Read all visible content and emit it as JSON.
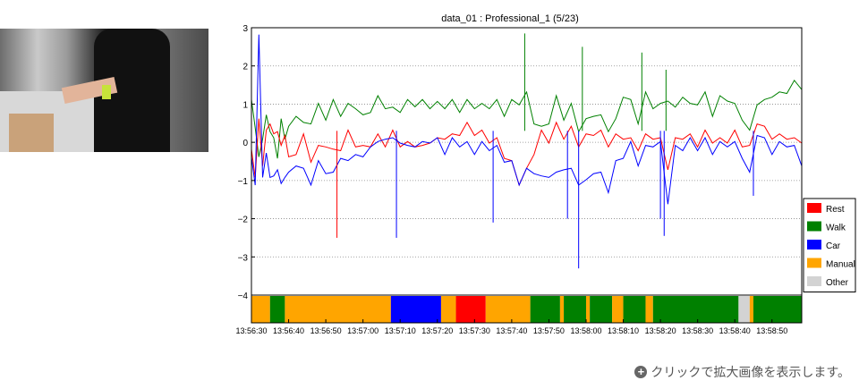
{
  "footer": {
    "text": "クリックで拡大画像を表示します。",
    "icon": "plus-circle-icon"
  },
  "photo": {
    "alt_icon": "video-frame-icon"
  },
  "chart_data": {
    "type": "line",
    "title": "data_01 : Professional_1 (5/23)",
    "ylim": [
      -4,
      3
    ],
    "yticks": [
      "3",
      "2",
      "1",
      "0",
      "−1",
      "−2",
      "−3",
      "−4"
    ],
    "yticks_values": [
      3,
      2,
      1,
      0,
      -1,
      -2,
      -3,
      -4
    ],
    "xlim": [
      "13:56:30",
      "13:58:58"
    ],
    "xticks": [
      "13:56:30",
      "13:56:40",
      "13:56:50",
      "13:57:00",
      "13:57:10",
      "13:57:20",
      "13:57:30",
      "13:57:40",
      "13:57:50",
      "13:58:00",
      "13:58:10",
      "13:58:20",
      "13:58:30",
      "13:58:40",
      "13:58:50"
    ],
    "grid": true,
    "legend_position": "right",
    "legend": [
      {
        "name": "Rest",
        "color": "#ff0000"
      },
      {
        "name": "Walk",
        "color": "#008000"
      },
      {
        "name": "Car",
        "color": "#0000ff"
      },
      {
        "name": "Manual",
        "color": "#ffa500"
      },
      {
        "name": "Other",
        "color": "#d3d3d3"
      }
    ],
    "activity_segments": [
      {
        "start": 0,
        "end": 5,
        "label": "Manual"
      },
      {
        "start": 5,
        "end": 9,
        "label": "Walk"
      },
      {
        "start": 9,
        "end": 37.5,
        "label": "Manual"
      },
      {
        "start": 37.5,
        "end": 51,
        "label": "Car"
      },
      {
        "start": 51,
        "end": 55,
        "label": "Manual"
      },
      {
        "start": 55,
        "end": 63,
        "label": "Rest"
      },
      {
        "start": 63,
        "end": 75,
        "label": "Manual"
      },
      {
        "start": 75,
        "end": 83,
        "label": "Walk"
      },
      {
        "start": 83,
        "end": 84,
        "label": "Manual"
      },
      {
        "start": 84,
        "end": 90,
        "label": "Walk"
      },
      {
        "start": 90,
        "end": 91,
        "label": "Manual"
      },
      {
        "start": 91,
        "end": 97,
        "label": "Walk"
      },
      {
        "start": 97,
        "end": 100,
        "label": "Manual"
      },
      {
        "start": 100,
        "end": 106,
        "label": "Walk"
      },
      {
        "start": 106,
        "end": 108,
        "label": "Manual"
      },
      {
        "start": 108,
        "end": 131,
        "label": "Walk"
      },
      {
        "start": 131,
        "end": 134,
        "label": "Other"
      },
      {
        "start": 134,
        "end": 135,
        "label": "Manual"
      },
      {
        "start": 135,
        "end": 148,
        "label": "Walk"
      }
    ],
    "series": [
      {
        "color": "#008000",
        "x": [
          0,
          1,
          2,
          3,
          4,
          5,
          6,
          7,
          8,
          9,
          10,
          12,
          14,
          16,
          18,
          20,
          22,
          24,
          26,
          28,
          30,
          32,
          34,
          36,
          38,
          40,
          42,
          44,
          46,
          48,
          50,
          52,
          54,
          56,
          58,
          60,
          62,
          64,
          66,
          68,
          70,
          72,
          74,
          76,
          78,
          80,
          82,
          84,
          86,
          88,
          90,
          92,
          94,
          96,
          98,
          100,
          102,
          104,
          106,
          108,
          110,
          112,
          114,
          116,
          118,
          120,
          122,
          124,
          126,
          128,
          130,
          132,
          134,
          136,
          138,
          140,
          142,
          144,
          146,
          148
        ],
        "y": [
          1.0,
          0.5,
          -0.5,
          0.2,
          0.6,
          0.4,
          0.0,
          -0.3,
          0.5,
          0.2,
          0.3,
          0.8,
          0.4,
          0.6,
          0.9,
          0.7,
          1.0,
          0.8,
          0.9,
          1.0,
          0.6,
          0.9,
          1.1,
          1.0,
          0.8,
          0.9,
          1.0,
          1.05,
          1.0,
          1.0,
          0.95,
          1.0,
          1.0,
          0.9,
          1.0,
          1.0,
          0.9,
          1.0,
          1.0,
          0.8,
          1.0,
          1.1,
          1.2,
          0.6,
          0.3,
          0.6,
          1.1,
          0.7,
          0.9,
          0.4,
          0.5,
          0.8,
          0.6,
          0.4,
          0.5,
          1.3,
          1.0,
          0.6,
          1.2,
          1.0,
          0.9,
          1.2,
          0.8,
          1.3,
          0.9,
          1.1,
          1.2,
          0.8,
          1.1,
          1.2,
          0.9,
          0.7,
          0.2,
          1.1,
          1.0,
          1.3,
          1.2,
          1.4,
          1.5,
          1.5
        ]
      },
      {
        "color": "#ff0000",
        "x": [
          0,
          1,
          2,
          3,
          4,
          5,
          6,
          7,
          8,
          9,
          10,
          12,
          14,
          16,
          18,
          20,
          22,
          24,
          26,
          28,
          30,
          32,
          34,
          36,
          38,
          40,
          42,
          44,
          46,
          48,
          50,
          52,
          54,
          56,
          58,
          60,
          62,
          64,
          66,
          68,
          70,
          72,
          74,
          76,
          78,
          80,
          82,
          84,
          86,
          88,
          90,
          92,
          94,
          96,
          98,
          100,
          102,
          104,
          106,
          108,
          110,
          112,
          114,
          116,
          118,
          120,
          122,
          124,
          126,
          128,
          130,
          132,
          134,
          136,
          138,
          140,
          142,
          144,
          146,
          148
        ],
        "y": [
          -0.3,
          -0.8,
          0.5,
          -0.5,
          0.2,
          0.6,
          0.1,
          0.4,
          -0.2,
          0.3,
          -0.5,
          -0.2,
          0.1,
          -0.4,
          -0.2,
          0.0,
          -0.3,
          -0.1,
          0.2,
          0.0,
          -0.2,
          0.0,
          0.1,
          0.0,
          0.2,
          0.0,
          -0.1,
          0.0,
          -0.2,
          0.1,
          0.0,
          0.2,
          0.1,
          0.3,
          0.4,
          0.3,
          0.2,
          0.1,
          0.0,
          -0.3,
          -0.6,
          -1.0,
          -0.8,
          -0.2,
          0.2,
          0.1,
          0.4,
          0.2,
          0.3,
          0.0,
          0.1,
          0.3,
          0.2,
          0.0,
          0.1,
          0.2,
          0.0,
          -0.1,
          0.1,
          0.2,
          0.0,
          -0.6,
          0.0,
          0.2,
          0.1,
          0.0,
          0.2,
          0.1,
          0.0,
          0.1,
          0.2,
          0.0,
          -0.2,
          0.6,
          0.3,
          0.2,
          0.1,
          0.2,
          0.0,
          0.1
        ]
      },
      {
        "color": "#0000ff",
        "x": [
          0,
          1,
          2,
          3,
          4,
          5,
          6,
          7,
          8,
          9,
          10,
          12,
          14,
          16,
          18,
          20,
          22,
          24,
          26,
          28,
          30,
          32,
          34,
          36,
          38,
          40,
          42,
          44,
          46,
          48,
          50,
          52,
          54,
          56,
          58,
          60,
          62,
          64,
          66,
          68,
          70,
          72,
          74,
          76,
          78,
          80,
          82,
          84,
          86,
          88,
          90,
          92,
          94,
          96,
          98,
          100,
          102,
          104,
          106,
          108,
          110,
          112,
          114,
          116,
          118,
          120,
          122,
          124,
          126,
          128,
          130,
          132,
          134,
          136,
          138,
          140,
          142,
          144,
          146,
          148
        ],
        "y": [
          -0.5,
          -1.0,
          2.7,
          -0.8,
          -0.4,
          -0.8,
          -1.0,
          -0.6,
          -1.2,
          -0.8,
          -0.9,
          -0.5,
          -0.8,
          -1.0,
          -0.6,
          -0.7,
          -0.9,
          -0.3,
          -0.6,
          -0.2,
          -0.5,
          0.0,
          -0.1,
          0.2,
          0.0,
          0.1,
          -0.2,
          0.0,
          -0.1,
          0.1,
          0.0,
          -0.2,
          0.0,
          0.0,
          -0.1,
          -0.2,
          -0.1,
          -0.1,
          -0.2,
          -0.4,
          -0.6,
          -1.0,
          -0.8,
          -0.7,
          -1.0,
          -0.8,
          -0.9,
          -0.6,
          -0.8,
          -1.0,
          -1.1,
          -0.7,
          -0.9,
          -1.2,
          -0.6,
          -0.3,
          -0.1,
          -0.5,
          -0.2,
          0.0,
          -0.1,
          -1.5,
          -0.2,
          -0.1,
          0.0,
          -0.1,
          0.0,
          -0.2,
          -0.1,
          0.0,
          -0.1,
          -0.3,
          -0.9,
          0.3,
          0.0,
          -0.2,
          -0.1,
          0.0,
          -0.2,
          -0.5
        ]
      }
    ],
    "spikes": [
      {
        "series_color": "#ff0000",
        "x": 23,
        "y": -2.5
      },
      {
        "series_color": "#0000ff",
        "x": 39,
        "y": -2.5
      },
      {
        "series_color": "#0000ff",
        "x": 65,
        "y": -2.1
      },
      {
        "series_color": "#008000",
        "x": 73.5,
        "y": 2.85
      },
      {
        "series_color": "#0000ff",
        "x": 85,
        "y": -2.0
      },
      {
        "series_color": "#0000ff",
        "x": 88,
        "y": -3.3
      },
      {
        "series_color": "#008000",
        "x": 89,
        "y": 2.5
      },
      {
        "series_color": "#008000",
        "x": 105,
        "y": 2.35
      },
      {
        "series_color": "#0000ff",
        "x": 110,
        "y": -2.0
      },
      {
        "series_color": "#0000ff",
        "x": 111,
        "y": -2.45
      },
      {
        "series_color": "#008000",
        "x": 111.5,
        "y": 1.9
      },
      {
        "series_color": "#0000ff",
        "x": 135,
        "y": -1.4
      }
    ]
  }
}
